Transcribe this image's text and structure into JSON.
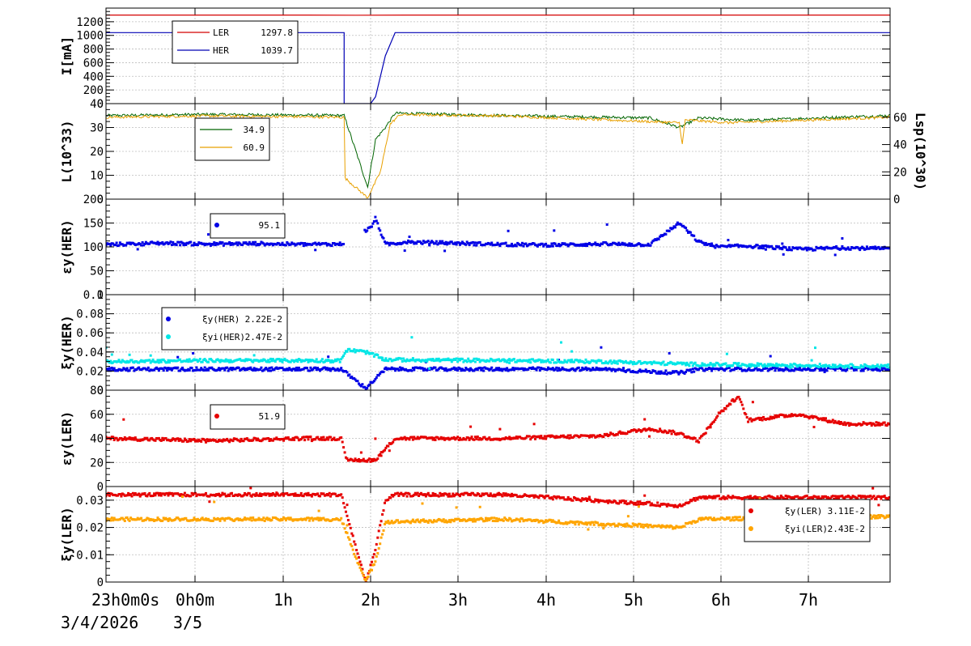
{
  "chart_data": {
    "type": "line",
    "x_axis": {
      "tick_labels": [
        "23h0m0s",
        "0h0m",
        "1h",
        "2h",
        "3h",
        "4h",
        "5h",
        "6h",
        "7h"
      ],
      "date_labels": [
        "3/4/2026",
        "3/5"
      ],
      "range_hours": [
        -0.05,
        7.95
      ]
    },
    "panels": [
      {
        "id": "current",
        "ylabel": "I[mA]",
        "ylim": [
          0,
          1400
        ],
        "yticks": [
          0,
          200,
          400,
          600,
          800,
          1000,
          1200
        ],
        "legend": {
          "position": "top-left",
          "entries": [
            {
              "label": "LER",
              "value": "1297.8",
              "color": "#d40000"
            },
            {
              "label": "HER",
              "value": "1039.7",
              "color": "#0000b4"
            }
          ]
        },
        "series": [
          {
            "name": "LER",
            "color": "#d40000",
            "style": "line",
            "points": [
              [
                -0.05,
                1298
              ],
              [
                1.9,
                1298
              ],
              [
                2.5,
                1295
              ],
              [
                3.0,
                1298
              ],
              [
                7.95,
                1298
              ]
            ]
          },
          {
            "name": "HER",
            "color": "#0000b4",
            "style": "line",
            "points": [
              [
                -0.05,
                1040
              ],
              [
                2.38,
                1040
              ],
              [
                2.38,
                0
              ],
              [
                2.65,
                0
              ],
              [
                2.7,
                100
              ],
              [
                2.8,
                700
              ],
              [
                2.9,
                1040
              ],
              [
                7.95,
                1040
              ]
            ]
          }
        ]
      },
      {
        "id": "luminosity",
        "ylabel": "L(10^33)",
        "ylabel_right": "Lsp(10^30)",
        "ylim": [
          0,
          40
        ],
        "yticks": [
          0,
          10,
          20,
          30,
          40
        ],
        "ylim_right": [
          0,
          70
        ],
        "yticks_right": [
          0,
          20,
          40,
          60
        ],
        "legend": {
          "position": "top-left",
          "entries": [
            {
              "label": "",
              "value": "34.9",
              "color": "#006400"
            },
            {
              "label": "",
              "value": "60.9",
              "color": "#e8a000"
            }
          ]
        },
        "series": [
          {
            "name": "L",
            "color": "#006400",
            "style": "line",
            "points": [
              [
                -0.05,
                35
              ],
              [
                1.0,
                35.5
              ],
              [
                2.38,
                35
              ],
              [
                2.62,
                5
              ],
              [
                2.7,
                25
              ],
              [
                2.8,
                30
              ],
              [
                2.9,
                36
              ],
              [
                4.0,
                35
              ],
              [
                5.5,
                34
              ],
              [
                5.8,
                30
              ],
              [
                6.0,
                34
              ],
              [
                6.5,
                33
              ],
              [
                7.95,
                35
              ]
            ]
          },
          {
            "name": "Lsp",
            "color": "#e8a000",
            "style": "line",
            "points": [
              [
                -0.05,
                60
              ],
              [
                1.0,
                61
              ],
              [
                2.38,
                60
              ],
              [
                2.38,
                16
              ],
              [
                2.62,
                1
              ],
              [
                2.75,
                20
              ],
              [
                2.85,
                55
              ],
              [
                2.95,
                62
              ],
              [
                4.0,
                61
              ],
              [
                5.8,
                56
              ],
              [
                5.83,
                40
              ],
              [
                5.86,
                58
              ],
              [
                6.3,
                56
              ],
              [
                7.95,
                60
              ]
            ]
          }
        ]
      },
      {
        "id": "eps_y_her",
        "ylabel": "εy(HER)",
        "ylim": [
          0,
          200
        ],
        "yticks": [
          0,
          50,
          100,
          150,
          200
        ],
        "legend": {
          "position": "top-left",
          "entries": [
            {
              "label": "",
              "value": "95.1",
              "color": "#0000e6"
            }
          ]
        },
        "series": [
          {
            "name": "εy(HER)",
            "color": "#0000e6",
            "style": "scatter",
            "points": [
              [
                0.0,
                105
              ],
              [
                0.5,
                108
              ],
              [
                1.0,
                106
              ],
              [
                1.5,
                107
              ],
              [
                2.0,
                105
              ],
              [
                2.35,
                106
              ],
              [
                2.65,
                140
              ],
              [
                2.7,
                160
              ],
              [
                2.8,
                105
              ],
              [
                3.0,
                110
              ],
              [
                3.5,
                108
              ],
              [
                4.0,
                105
              ],
              [
                4.5,
                104
              ],
              [
                5.0,
                106
              ],
              [
                5.5,
                105
              ],
              [
                5.8,
                150
              ],
              [
                6.0,
                110
              ],
              [
                6.2,
                100
              ],
              [
                6.5,
                102
              ],
              [
                7.0,
                95
              ],
              [
                7.5,
                98
              ],
              [
                7.95,
                96
              ]
            ]
          }
        ]
      },
      {
        "id": "xi_y_her",
        "ylabel": "ξy(HER)",
        "ylim": [
          0,
          0.1
        ],
        "yticks": [
          0,
          0.02,
          0.04,
          0.06,
          0.08,
          0.1
        ],
        "legend": {
          "position": "top-left",
          "entries": [
            {
              "label": "ξy(HER)",
              "value": "2.22E-2",
              "color": "#0000e6"
            },
            {
              "label": "ξyi(HER)",
              "value": "2.47E-2",
              "color": "#00e6e6"
            }
          ]
        },
        "series": [
          {
            "name": "ξy(HER)",
            "color": "#0000e6",
            "style": "scatter",
            "points": [
              [
                0.0,
                0.022
              ],
              [
                1.0,
                0.022
              ],
              [
                2.35,
                0.022
              ],
              [
                2.6,
                0.002
              ],
              [
                2.7,
                0.012
              ],
              [
                2.8,
                0.022
              ],
              [
                4.0,
                0.022
              ],
              [
                5.0,
                0.022
              ],
              [
                5.8,
                0.018
              ],
              [
                6.0,
                0.022
              ],
              [
                7.0,
                0.022
              ],
              [
                7.95,
                0.022
              ]
            ]
          },
          {
            "name": "ξyi(HER)",
            "color": "#00e6e6",
            "style": "scatter",
            "points": [
              [
                0.0,
                0.03
              ],
              [
                1.0,
                0.031
              ],
              [
                2.35,
                0.031
              ],
              [
                2.4,
                0.042
              ],
              [
                2.6,
                0.04
              ],
              [
                2.8,
                0.032
              ],
              [
                4.0,
                0.031
              ],
              [
                5.0,
                0.03
              ],
              [
                6.0,
                0.027
              ],
              [
                7.0,
                0.026
              ],
              [
                7.95,
                0.025
              ]
            ]
          }
        ]
      },
      {
        "id": "eps_y_ler",
        "ylabel": "εy(LER)",
        "ylim": [
          0,
          80
        ],
        "yticks": [
          0,
          20,
          40,
          60,
          80
        ],
        "legend": {
          "position": "top-left",
          "entries": [
            {
              "label": "",
              "value": "51.9",
              "color": "#e60000"
            }
          ]
        },
        "series": [
          {
            "name": "εy(LER)",
            "color": "#e60000",
            "style": "scatter",
            "points": [
              [
                0.0,
                40
              ],
              [
                1.0,
                38
              ],
              [
                2.0,
                40
              ],
              [
                2.35,
                40
              ],
              [
                2.4,
                22
              ],
              [
                2.7,
                22
              ],
              [
                2.9,
                40
              ],
              [
                4.0,
                40
              ],
              [
                5.0,
                42
              ],
              [
                5.5,
                48
              ],
              [
                5.8,
                44
              ],
              [
                6.0,
                38
              ],
              [
                6.2,
                60
              ],
              [
                6.4,
                75
              ],
              [
                6.5,
                55
              ],
              [
                7.0,
                60
              ],
              [
                7.5,
                52
              ],
              [
                7.95,
                52
              ]
            ]
          }
        ]
      },
      {
        "id": "xi_y_ler",
        "ylabel": "ξy(LER)",
        "ylim": [
          0,
          0.035
        ],
        "yticks": [
          0,
          0.01,
          0.02,
          0.03
        ],
        "legend": {
          "position": "top-right",
          "entries": [
            {
              "label": "ξy(LER)",
              "value": "3.11E-2",
              "color": "#e60000"
            },
            {
              "label": "ξyi(LER)",
              "value": "2.43E-2",
              "color": "#ffa500"
            }
          ]
        },
        "series": [
          {
            "name": "ξy(LER)",
            "color": "#e60000",
            "style": "scatter",
            "points": [
              [
                0.0,
                0.032
              ],
              [
                1.0,
                0.032
              ],
              [
                2.35,
                0.032
              ],
              [
                2.6,
                0.0
              ],
              [
                2.7,
                0.012
              ],
              [
                2.8,
                0.03
              ],
              [
                2.9,
                0.032
              ],
              [
                4.0,
                0.032
              ],
              [
                5.8,
                0.028
              ],
              [
                6.0,
                0.031
              ],
              [
                7.95,
                0.031
              ]
            ]
          },
          {
            "name": "ξyi(LER)",
            "color": "#ffa500",
            "style": "scatter",
            "points": [
              [
                0.0,
                0.023
              ],
              [
                1.0,
                0.023
              ],
              [
                2.35,
                0.023
              ],
              [
                2.6,
                0.0
              ],
              [
                2.7,
                0.008
              ],
              [
                2.8,
                0.022
              ],
              [
                4.0,
                0.023
              ],
              [
                5.8,
                0.02
              ],
              [
                6.0,
                0.023
              ],
              [
                7.95,
                0.024
              ]
            ]
          }
        ]
      }
    ]
  }
}
